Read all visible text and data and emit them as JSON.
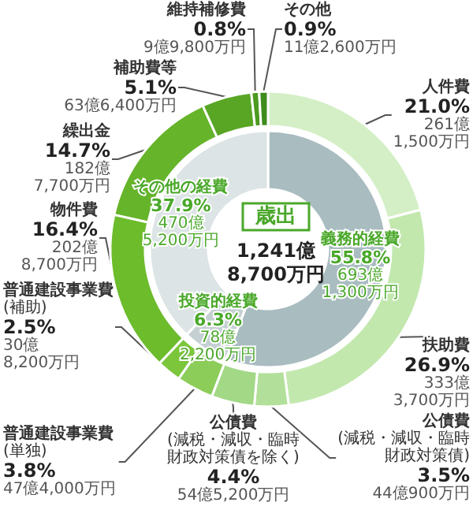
{
  "chart_data": [
    {
      "type": "donut",
      "categories": [
        "人件費",
        "扶助費",
        "公債費\n(減税・減収・臨時財政対策債)",
        "公債費\n(減税・減収・臨時財政対策債を除く)",
        "普通建設事業費\n(単独)",
        "普通建設事業費\n(補助)",
        "物件費",
        "繰出金",
        "補助費等",
        "維持補修費",
        "その他"
      ],
      "values": [
        21.0,
        26.9,
        3.5,
        4.4,
        3.8,
        2.5,
        16.4,
        14.7,
        5.1,
        0.8,
        0.9
      ],
      "colors": [
        "#d4efc6",
        "#c2e8ae",
        "#b2e09a",
        "#a2d886",
        "#8ccd5a",
        "#7cc63c",
        "#6cbc2c",
        "#66b42a",
        "#58a624",
        "#4c9a20",
        "#3e8c1c"
      ],
      "value_labels": [
        "21.0%\n261億\n1,500万円",
        "26.9%\n333億\n3,700万円",
        "3.5%\n44億900万円",
        "4.4%\n54億5,200万円",
        "3.8%\n47億4,000万円",
        "2.5%\n30億\n8,200万円",
        "16.4%\n202億\n8,700万円",
        "14.7%\n182億\n7,700万円",
        "5.1%\n63億6,400万円",
        "0.8%\n9億9,800万円",
        "0.9%\n11億2,600万円"
      ]
    },
    {
      "type": "donut",
      "title": "歳出",
      "subtitle": "1,241億\n8,700万円",
      "categories": [
        "義務的経費",
        "投資的経費",
        "その他の経費"
      ],
      "values": [
        55.8,
        6.3,
        37.9
      ],
      "colors": [
        "#a9bcc0",
        "#c5d0d3",
        "#dde4e5"
      ],
      "value_labels": [
        "55.8%\n693億\n1,300万円",
        "6.3%\n78億\n2,200万円",
        "37.9%\n470億\n5,200万円"
      ]
    }
  ]
}
